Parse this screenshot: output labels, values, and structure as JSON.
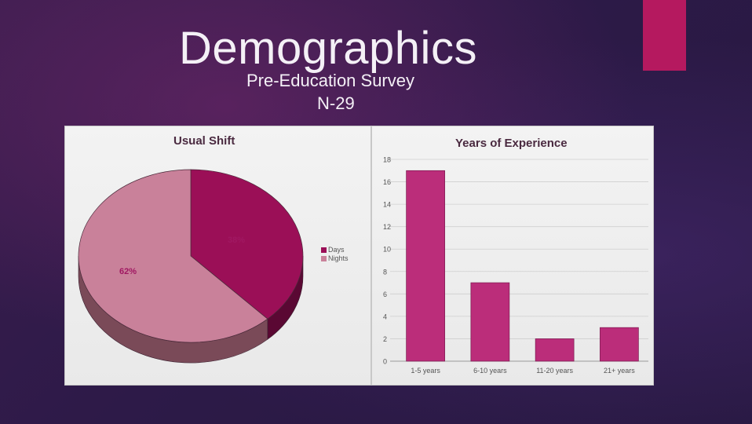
{
  "slide": {
    "title": "Demographics",
    "subtitle": "Pre-Education Survey",
    "sample": "N-29",
    "accent_color": "#b5195f"
  },
  "chart_data": [
    {
      "type": "pie",
      "title": "Usual Shift",
      "labels": [
        "Days",
        "Nights"
      ],
      "values": [
        38,
        62
      ],
      "data_labels": [
        "38%",
        "62%"
      ],
      "colors": [
        "#9b0f57",
        "#c9819a"
      ],
      "legend": "right",
      "style": "3d"
    },
    {
      "type": "bar",
      "title": "Years of Experience",
      "categories": [
        "1-5 years",
        "6-10 years",
        "11-20 years",
        "21+ years"
      ],
      "values": [
        17,
        7,
        2,
        3
      ],
      "ylim": [
        0,
        18
      ],
      "yticks": [
        "0",
        "2",
        "4",
        "6",
        "8",
        "10",
        "12",
        "14",
        "16",
        "18"
      ],
      "color": "#bb2d7a",
      "grid": true
    }
  ]
}
